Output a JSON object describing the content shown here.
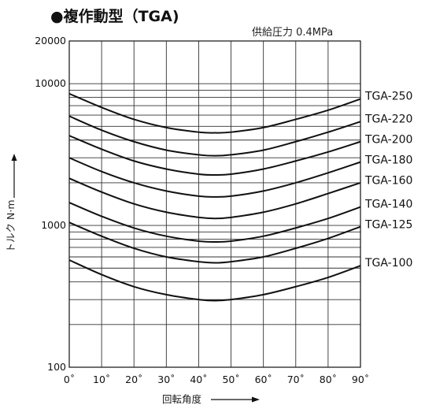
{
  "chart_data": {
    "type": "line",
    "title": "●複作動型（TGA)",
    "subtitle": "供給圧力 0.4MPa",
    "xlabel": "回転角度",
    "ylabel": "トルク N·m",
    "x": [
      0,
      10,
      20,
      30,
      40,
      45,
      50,
      60,
      70,
      80,
      90
    ],
    "x_tick_labels": [
      "0˚",
      "10˚",
      "20˚",
      "30˚",
      "40˚",
      "50˚",
      "60˚",
      "70˚",
      "80˚",
      "90˚"
    ],
    "x_ticks": [
      0,
      10,
      20,
      30,
      40,
      50,
      60,
      70,
      80,
      90
    ],
    "xlim": [
      0,
      90
    ],
    "y_scale": "log",
    "ylim": [
      100,
      20000
    ],
    "y_tick_labels": [
      "20000",
      "10000",
      "1000",
      "100"
    ],
    "y_ticks": [
      20000,
      10000,
      1000,
      100
    ],
    "grid": true,
    "series": [
      {
        "name": "TGA-250",
        "values": [
          8500,
          6800,
          5600,
          4900,
          4550,
          4500,
          4550,
          4900,
          5600,
          6500,
          7800
        ]
      },
      {
        "name": "TGA-220",
        "values": [
          5900,
          4700,
          3900,
          3400,
          3150,
          3100,
          3150,
          3400,
          3900,
          4550,
          5400
        ]
      },
      {
        "name": "TGA-200",
        "values": [
          4300,
          3450,
          2850,
          2500,
          2300,
          2270,
          2300,
          2500,
          2850,
          3300,
          3900
        ]
      },
      {
        "name": "TGA-180",
        "values": [
          3000,
          2400,
          2000,
          1750,
          1610,
          1590,
          1610,
          1750,
          2000,
          2350,
          2800
        ]
      },
      {
        "name": "TGA-160",
        "values": [
          2150,
          1720,
          1420,
          1240,
          1140,
          1120,
          1140,
          1240,
          1420,
          1680,
          2000
        ]
      },
      {
        "name": "TGA-140",
        "values": [
          1450,
          1160,
          960,
          840,
          775,
          765,
          775,
          840,
          960,
          1120,
          1350
        ]
      },
      {
        "name": "TGA-125",
        "values": [
          1050,
          840,
          690,
          600,
          555,
          545,
          555,
          600,
          690,
          810,
          980
        ]
      },
      {
        "name": "TGA-100",
        "values": [
          570,
          450,
          370,
          325,
          300,
          295,
          300,
          325,
          370,
          430,
          520
        ]
      }
    ]
  }
}
